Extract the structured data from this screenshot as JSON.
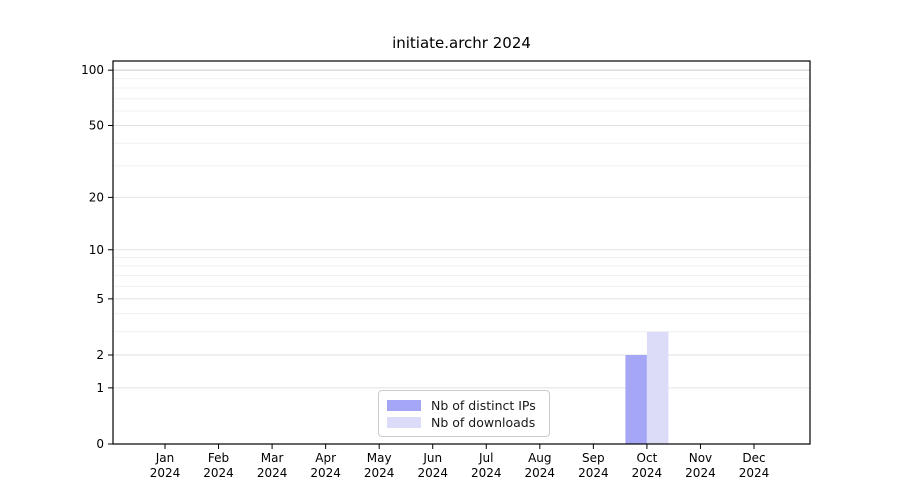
{
  "title": "initiate.archr 2024",
  "chart_data": {
    "type": "bar",
    "title": "initiate.archr 2024",
    "categories": [
      "Jan",
      "Feb",
      "Mar",
      "Apr",
      "May",
      "Jun",
      "Jul",
      "Aug",
      "Sep",
      "Oct",
      "Nov",
      "Dec"
    ],
    "year_label": "2024",
    "series": [
      {
        "name": "Nb of distinct IPs",
        "color": "#a6a6f6",
        "values": [
          0,
          0,
          0,
          0,
          0,
          0,
          0,
          0,
          0,
          2,
          0,
          0
        ]
      },
      {
        "name": "Nb of downloads",
        "color": "#dcdcf9",
        "values": [
          0,
          0,
          0,
          0,
          0,
          0,
          0,
          0,
          0,
          3,
          0,
          0
        ]
      }
    ],
    "xlabel": "",
    "ylabel": "",
    "yscale": "log1p",
    "ylim": [
      0,
      112
    ],
    "y_major_ticks": [
      0,
      1,
      2,
      5,
      10,
      20,
      50,
      100
    ],
    "y_minor_ticks": [
      3,
      4,
      6,
      7,
      8,
      9,
      30,
      40,
      60,
      70,
      80,
      90
    ],
    "grid": "horizontal",
    "legend_position": "lower-center-inside"
  },
  "colors": {
    "bar_distinct_ips": "#a6a6f6",
    "bar_downloads": "#dcdcf9",
    "grid_major": "#e2e2e2",
    "grid_minor": "#f0f0f0",
    "grid_top": "#c9c9c9",
    "axis": "#000000",
    "text": "#000000",
    "legend_border": "#cccccc",
    "background": "#ffffff"
  }
}
